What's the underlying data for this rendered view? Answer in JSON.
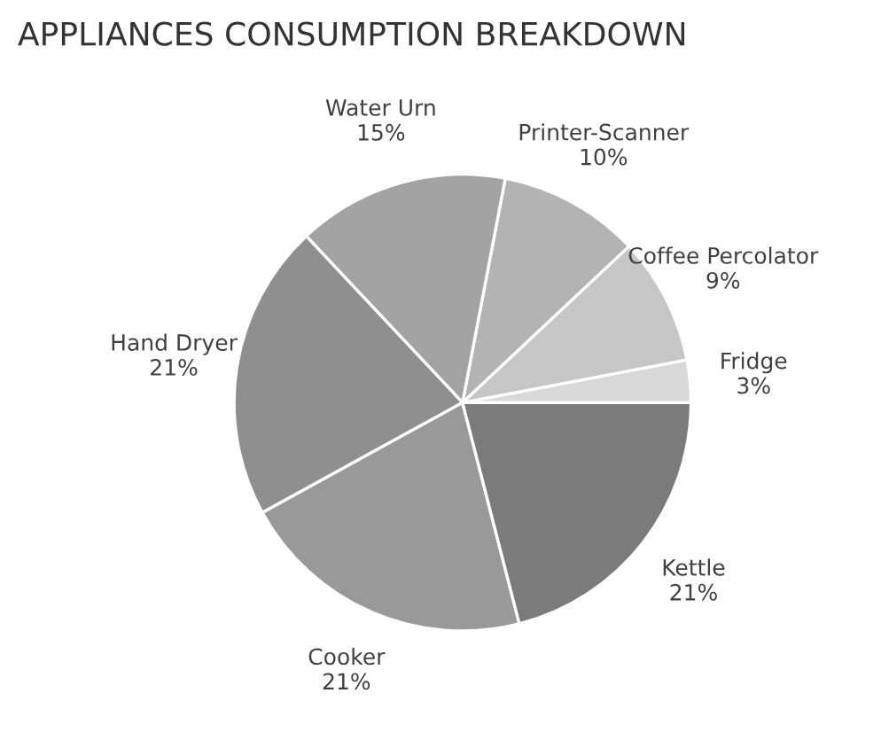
{
  "chart_data": {
    "type": "pie",
    "title": "APPLIANCES CONSUMPTION BREAKDOWN",
    "categories": [
      "Fridge",
      "Coffee Percolator",
      "Printer-Scanner",
      "Water Urn",
      "Hand Dryer",
      "Cooker",
      "Kettle"
    ],
    "values": [
      3,
      9,
      10,
      15,
      21,
      21,
      21
    ],
    "value_labels": [
      "3%",
      "9%",
      "10%",
      "15%",
      "21%",
      "21%",
      "21%"
    ],
    "colors": [
      "#d9d9d9",
      "#c6c6c6",
      "#b3b3b3",
      "#a3a3a3",
      "#8f8f8f",
      "#999999",
      "#7b7b7b"
    ],
    "legend": false
  }
}
